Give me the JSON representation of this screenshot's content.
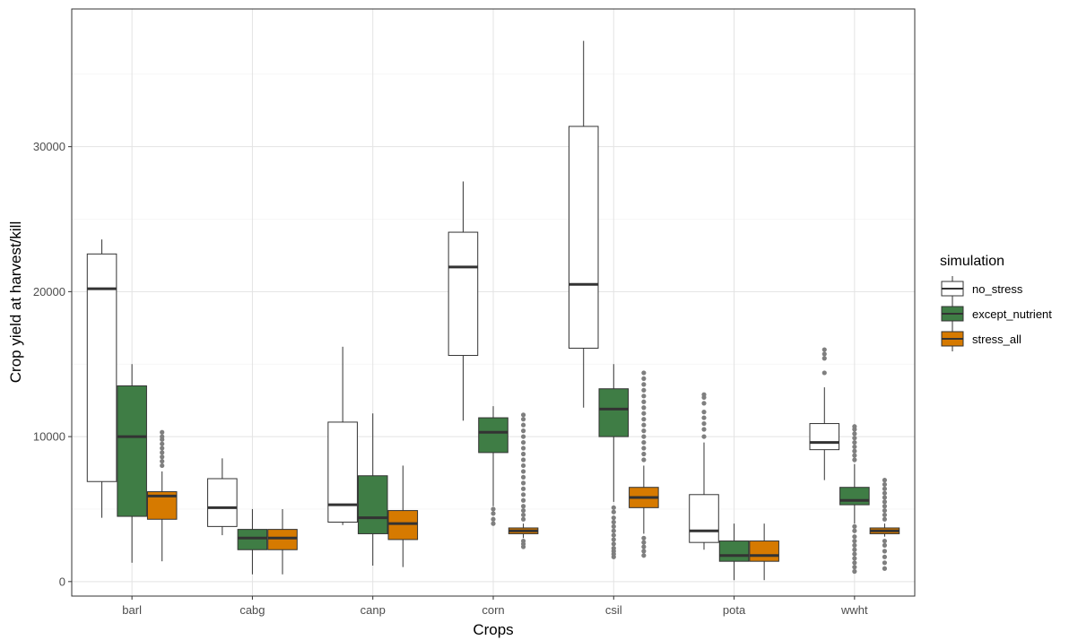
{
  "chart_data": {
    "type": "boxplot",
    "xlabel": "Crops",
    "ylabel": "Crop yield at harvest/kill",
    "ylim": [
      -1000,
      39500
    ],
    "yticks": [
      0,
      10000,
      20000,
      30000
    ],
    "ytick_labels": [
      "0",
      "10000",
      "20000",
      "30000"
    ],
    "grid": true,
    "categories": [
      "barl",
      "cabg",
      "canp",
      "corn",
      "csil",
      "pota",
      "wwht"
    ],
    "legend": {
      "title": "simulation",
      "position": "right"
    },
    "series": [
      {
        "name": "no_stress",
        "fill": "#ffffff",
        "boxes": [
          {
            "whisker_low": 4400,
            "q1": 6900,
            "median": 20200,
            "q3": 22600,
            "whisker_high": 23600,
            "outliers": []
          },
          {
            "whisker_low": 3200,
            "q1": 3800,
            "median": 5100,
            "q3": 7100,
            "whisker_high": 8500,
            "outliers": []
          },
          {
            "whisker_low": 3900,
            "q1": 4100,
            "median": 5300,
            "q3": 11000,
            "whisker_high": 16200,
            "outliers": []
          },
          {
            "whisker_low": 11100,
            "q1": 15600,
            "median": 21700,
            "q3": 24100,
            "whisker_high": 27600,
            "outliers": []
          },
          {
            "whisker_low": 12000,
            "q1": 16100,
            "median": 20500,
            "q3": 31400,
            "whisker_high": 37300,
            "outliers": []
          },
          {
            "whisker_low": 2200,
            "q1": 2700,
            "median": 3500,
            "q3": 6000,
            "whisker_high": 9600,
            "outliers": [
              10000,
              10500,
              10900,
              11300,
              11700,
              12300,
              12700,
              12900
            ]
          },
          {
            "whisker_low": 7000,
            "q1": 9100,
            "median": 9600,
            "q3": 10900,
            "whisker_high": 13400,
            "outliers": [
              14400,
              15400,
              15700,
              16000
            ]
          }
        ]
      },
      {
        "name": "except_nutrient",
        "fill": "#3f7d45",
        "boxes": [
          {
            "whisker_low": 1300,
            "q1": 4500,
            "median": 10000,
            "q3": 13500,
            "whisker_high": 15000,
            "outliers": []
          },
          {
            "whisker_low": 500,
            "q1": 2200,
            "median": 3000,
            "q3": 3600,
            "whisker_high": 5000,
            "outliers": []
          },
          {
            "whisker_low": 1100,
            "q1": 3300,
            "median": 4400,
            "q3": 7300,
            "whisker_high": 11600,
            "outliers": []
          },
          {
            "whisker_low": 5200,
            "q1": 8900,
            "median": 10300,
            "q3": 11300,
            "whisker_high": 12100,
            "outliers": [
              4000,
              4300,
              4700,
              5000
            ]
          },
          {
            "whisker_low": 5500,
            "q1": 10000,
            "median": 11900,
            "q3": 13300,
            "whisker_high": 15000,
            "outliers": [
              1700,
              1900,
              2100,
              2300,
              2600,
              2900,
              3200,
              3500,
              3800,
              4100,
              4400,
              4800,
              5100
            ]
          },
          {
            "whisker_low": 100,
            "q1": 1400,
            "median": 1800,
            "q3": 2800,
            "whisker_high": 4000,
            "outliers": []
          },
          {
            "whisker_low": 4000,
            "q1": 5300,
            "median": 5600,
            "q3": 6500,
            "whisker_high": 8100,
            "outliers": [
              700,
              1000,
              1300,
              1600,
              1900,
              2200,
              2500,
              2800,
              3100,
              3500,
              3800,
              8400,
              8700,
              9000,
              9300,
              9600,
              9900,
              10200,
              10500,
              10700
            ]
          }
        ]
      },
      {
        "name": "stress_all",
        "fill": "#d67a00",
        "boxes": [
          {
            "whisker_low": 1400,
            "q1": 4300,
            "median": 5900,
            "q3": 6200,
            "whisker_high": 7600,
            "outliers": [
              8000,
              8300,
              8600,
              8900,
              9200,
              9500,
              9800,
              10000,
              10300
            ]
          },
          {
            "whisker_low": 500,
            "q1": 2200,
            "median": 3000,
            "q3": 3600,
            "whisker_high": 5000,
            "outliers": []
          },
          {
            "whisker_low": 1000,
            "q1": 2900,
            "median": 4000,
            "q3": 4900,
            "whisker_high": 8000,
            "outliers": []
          },
          {
            "whisker_low": 3000,
            "q1": 3300,
            "median": 3500,
            "q3": 3700,
            "whisker_high": 4000,
            "outliers": [
              2400,
              2600,
              2800,
              4300,
              4600,
              4900,
              5200,
              5600,
              6000,
              6400,
              6800,
              7200,
              7600,
              8000,
              8400,
              8800,
              9200,
              9600,
              10000,
              10400,
              10800,
              11200,
              11500
            ]
          },
          {
            "whisker_low": 3300,
            "q1": 5100,
            "median": 5800,
            "q3": 6500,
            "whisker_high": 8000,
            "outliers": [
              1800,
              2100,
              2400,
              2700,
              3000,
              8400,
              8800,
              9200,
              9600,
              10000,
              10400,
              10800,
              11200,
              11600,
              12000,
              12400,
              12800,
              13200,
              13600,
              14000,
              14400
            ]
          },
          {
            "whisker_low": 100,
            "q1": 1400,
            "median": 1800,
            "q3": 2800,
            "whisker_high": 4000,
            "outliers": []
          },
          {
            "whisker_low": 3100,
            "q1": 3300,
            "median": 3500,
            "q3": 3700,
            "whisker_high": 4000,
            "outliers": [
              900,
              1300,
              1700,
              2100,
              2500,
              2800,
              4300,
              4600,
              4900,
              5200,
              5500,
              5800,
              6100,
              6400,
              6700,
              7000
            ]
          }
        ]
      }
    ]
  }
}
